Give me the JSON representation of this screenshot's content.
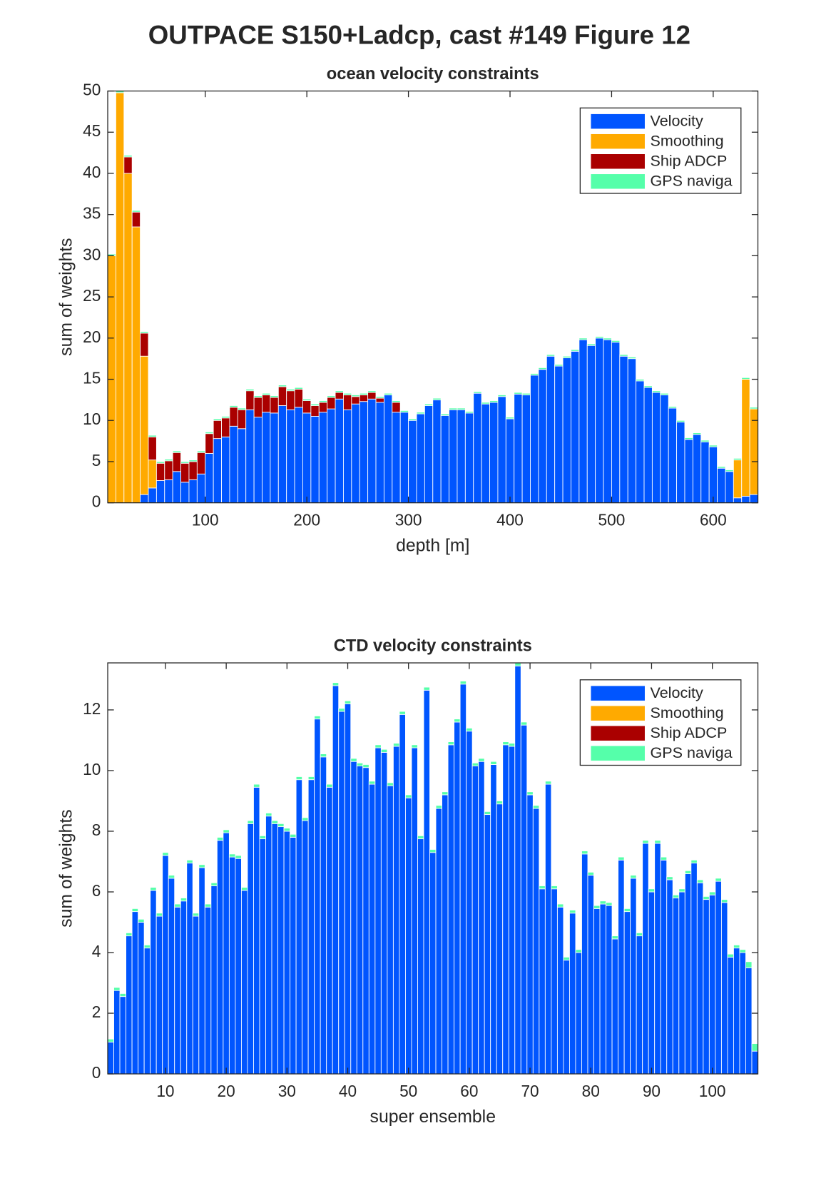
{
  "title": "OUTPACE S150+Ladcp, cast #149  Figure 12",
  "chart_data": [
    {
      "type": "bar",
      "stacked": true,
      "title": "ocean velocity constraints",
      "xlabel": "depth [m]",
      "ylabel": "sum of weights",
      "legend": "upper right",
      "x": [
        8,
        16,
        24,
        32,
        40,
        48,
        56,
        64,
        72,
        80,
        88,
        96,
        104,
        112,
        120,
        128,
        136,
        144,
        152,
        160,
        168,
        176,
        184,
        192,
        200,
        208,
        216,
        224,
        232,
        240,
        248,
        256,
        264,
        272,
        280,
        288,
        296,
        304,
        312,
        320,
        328,
        336,
        344,
        352,
        360,
        368,
        376,
        384,
        392,
        400,
        408,
        416,
        424,
        432,
        440,
        448,
        456,
        464,
        472,
        480,
        488,
        496,
        504,
        512,
        520,
        528,
        536,
        544,
        552,
        560,
        568,
        576,
        584,
        592,
        600,
        608,
        616,
        624,
        632,
        640
      ],
      "xlim": [
        4,
        644
      ],
      "ylim": [
        0,
        50
      ],
      "xticks": [
        100,
        200,
        300,
        400,
        500,
        600
      ],
      "yticks": [
        0,
        5,
        10,
        15,
        20,
        25,
        30,
        35,
        40,
        45,
        50
      ],
      "series": [
        {
          "name": "Velocity",
          "color": "#0055ff",
          "values": [
            0,
            0,
            0,
            0,
            1,
            1.8,
            2.7,
            2.8,
            3.8,
            2.5,
            2.8,
            3.5,
            6,
            7.8,
            8,
            9.3,
            9,
            11.3,
            10.4,
            11,
            10.9,
            11.8,
            11.3,
            11.6,
            10.9,
            10.5,
            11,
            11.4,
            12.6,
            11.3,
            12,
            12.3,
            12.6,
            12.2,
            13.1,
            11,
            11,
            10,
            10.8,
            11.8,
            12.5,
            10.6,
            11.3,
            11.3,
            10.9,
            13.3,
            12,
            12.2,
            12.9,
            10.2,
            13.2,
            13.1,
            15.5,
            16.2,
            17.8,
            16.6,
            17.6,
            18.4,
            19.8,
            19.1,
            20,
            19.8,
            19.5,
            17.8,
            17.5,
            14.8,
            14,
            13.4,
            13.1,
            11.5,
            9.8,
            7.7,
            8.3,
            7.4,
            6.8,
            4.2,
            3.8,
            0.6,
            0.8,
            1
          ]
        },
        {
          "name": "Smoothing",
          "color": "#ffaa00",
          "values": [
            30,
            49.8,
            40,
            33.5,
            16.8,
            3.4,
            0,
            0,
            0,
            0,
            0,
            0,
            0,
            0,
            0,
            0,
            0,
            0,
            0,
            0,
            0,
            0,
            0,
            0,
            0,
            0,
            0,
            0,
            0,
            0,
            0,
            0,
            0,
            0,
            0,
            0,
            0,
            0,
            0,
            0,
            0,
            0,
            0,
            0,
            0,
            0,
            0,
            0,
            0,
            0,
            0,
            0,
            0,
            0,
            0,
            0,
            0,
            0,
            0,
            0,
            0,
            0,
            0,
            0,
            0,
            0,
            0,
            0,
            0,
            0,
            0,
            0,
            0,
            0,
            0,
            0,
            0,
            4.6,
            14.2,
            10.4
          ]
        },
        {
          "name": "Ship ADCP",
          "color": "#aa0000",
          "values": [
            0,
            0,
            2,
            1.8,
            2.8,
            2.8,
            2.1,
            2.3,
            2.3,
            2.3,
            2.2,
            2.6,
            2.4,
            2.2,
            2.3,
            2.3,
            2.3,
            2.3,
            2.4,
            2.1,
            1.9,
            2.3,
            2.3,
            2.2,
            1.5,
            1.3,
            1.2,
            1.4,
            0.8,
            1.8,
            0.9,
            0.8,
            0.8,
            0.5,
            0,
            1.2,
            0,
            0,
            0,
            0,
            0,
            0,
            0,
            0,
            0,
            0,
            0,
            0,
            0,
            0,
            0,
            0,
            0,
            0,
            0,
            0,
            0,
            0,
            0,
            0,
            0,
            0,
            0,
            0,
            0,
            0,
            0,
            0,
            0,
            0,
            0,
            0,
            0,
            0,
            0,
            0,
            0,
            0,
            0,
            0
          ]
        },
        {
          "name": "GPS naviga",
          "color": "#55ffaa",
          "values": [
            0.2,
            0.2,
            0.2,
            0.2,
            0.2,
            0.2,
            0.2,
            0.2,
            0.2,
            0.2,
            0.2,
            0.2,
            0.2,
            0.2,
            0.2,
            0.2,
            0.2,
            0.2,
            0.2,
            0.2,
            0.2,
            0.2,
            0.2,
            0.2,
            0.2,
            0.2,
            0.2,
            0.2,
            0.2,
            0.2,
            0.2,
            0.2,
            0.2,
            0.2,
            0.2,
            0.2,
            0.2,
            0.2,
            0.2,
            0.2,
            0.2,
            0.2,
            0.2,
            0.2,
            0.2,
            0.2,
            0.2,
            0.2,
            0.2,
            0.2,
            0.2,
            0.2,
            0.2,
            0.2,
            0.2,
            0.2,
            0.2,
            0.2,
            0.2,
            0.2,
            0.2,
            0.2,
            0.2,
            0.2,
            0.2,
            0.2,
            0.2,
            0.2,
            0.2,
            0.2,
            0.2,
            0.2,
            0.2,
            0.2,
            0.2,
            0.2,
            0.2,
            0.2,
            0.2,
            0.2
          ]
        }
      ]
    },
    {
      "type": "bar",
      "stacked": true,
      "title": "CTD velocity constraints",
      "xlabel": "super ensemble",
      "ylabel": "sum of weights",
      "legend": "upper right",
      "x": [
        1,
        2,
        3,
        4,
        5,
        6,
        7,
        8,
        9,
        10,
        11,
        12,
        13,
        14,
        15,
        16,
        17,
        18,
        19,
        20,
        21,
        22,
        23,
        24,
        25,
        26,
        27,
        28,
        29,
        30,
        31,
        32,
        33,
        34,
        35,
        36,
        37,
        38,
        39,
        40,
        41,
        42,
        43,
        44,
        45,
        46,
        47,
        48,
        49,
        50,
        51,
        52,
        53,
        54,
        55,
        56,
        57,
        58,
        59,
        60,
        61,
        62,
        63,
        64,
        65,
        66,
        67,
        68,
        69,
        70,
        71,
        72,
        73,
        74,
        75,
        76,
        77,
        78,
        79,
        80,
        81,
        82,
        83,
        84,
        85,
        86,
        87,
        88,
        89,
        90,
        91,
        92,
        93,
        94,
        95,
        96,
        97,
        98,
        99,
        100,
        101,
        102,
        103,
        104,
        105,
        106,
        107
      ],
      "xlim": [
        0.5,
        107.5
      ],
      "ylim": [
        0,
        13.55
      ],
      "xticks": [
        10,
        20,
        30,
        40,
        50,
        60,
        70,
        80,
        90,
        100
      ],
      "yticks": [
        0,
        2,
        4,
        6,
        8,
        10,
        12
      ],
      "series": [
        {
          "name": "Velocity",
          "color": "#0055ff",
          "values": [
            1.05,
            2.75,
            2.55,
            4.55,
            5.35,
            5,
            4.15,
            6.05,
            5.2,
            7.2,
            6.45,
            5.5,
            5.7,
            6.95,
            5.2,
            6.8,
            5.5,
            6.2,
            7.7,
            7.95,
            7.15,
            7.1,
            6.05,
            8.25,
            9.45,
            7.75,
            8.5,
            8.25,
            8.15,
            8,
            7.8,
            9.7,
            8.35,
            9.7,
            11.7,
            10.45,
            9.45,
            12.8,
            11.95,
            12.2,
            10.3,
            10.15,
            10.1,
            9.55,
            10.75,
            10.6,
            9.5,
            10.8,
            11.85,
            9.1,
            10.75,
            7.75,
            12.65,
            7.3,
            8.75,
            9.2,
            10.85,
            11.6,
            12.85,
            11.3,
            10.15,
            10.3,
            8.55,
            10.2,
            8.9,
            10.85,
            10.8,
            13.45,
            11.5,
            9.2,
            8.75,
            6.1,
            9.55,
            6.1,
            5.5,
            3.75,
            5.3,
            4,
            7.25,
            6.55,
            5.45,
            5.6,
            5.55,
            4.45,
            7.05,
            5.35,
            6.45,
            4.55,
            7.6,
            6,
            7.6,
            7.05,
            6.4,
            5.8,
            6,
            6.6,
            6.95,
            6.3,
            5.75,
            5.9,
            6.35,
            5.65,
            3.85,
            4.15,
            4,
            3.5,
            0.75
          ]
        },
        {
          "name": "Smoothing",
          "color": "#ffaa00",
          "values": [
            0,
            0,
            0,
            0,
            0,
            0,
            0,
            0,
            0,
            0,
            0,
            0,
            0,
            0,
            0,
            0,
            0,
            0,
            0,
            0,
            0,
            0,
            0,
            0,
            0,
            0,
            0,
            0,
            0,
            0,
            0,
            0,
            0,
            0,
            0,
            0,
            0,
            0,
            0,
            0,
            0,
            0,
            0,
            0,
            0,
            0,
            0,
            0,
            0,
            0,
            0,
            0,
            0,
            0,
            0,
            0,
            0,
            0,
            0,
            0,
            0,
            0,
            0,
            0,
            0,
            0,
            0,
            0,
            0,
            0,
            0,
            0,
            0,
            0,
            0,
            0,
            0,
            0,
            0,
            0,
            0,
            0,
            0,
            0,
            0,
            0,
            0,
            0,
            0,
            0,
            0,
            0,
            0,
            0,
            0,
            0,
            0,
            0,
            0,
            0,
            0,
            0,
            0,
            0,
            0,
            0,
            0
          ]
        },
        {
          "name": "Ship ADCP",
          "color": "#aa0000",
          "values": [
            0,
            0,
            0,
            0,
            0,
            0,
            0,
            0,
            0,
            0,
            0,
            0,
            0,
            0,
            0,
            0,
            0,
            0,
            0,
            0,
            0,
            0,
            0,
            0,
            0,
            0,
            0,
            0,
            0,
            0,
            0,
            0,
            0,
            0,
            0,
            0,
            0,
            0,
            0,
            0,
            0,
            0,
            0,
            0,
            0,
            0,
            0,
            0,
            0,
            0,
            0,
            0,
            0,
            0,
            0,
            0,
            0,
            0,
            0,
            0,
            0,
            0,
            0,
            0,
            0,
            0,
            0,
            0,
            0,
            0,
            0,
            0,
            0,
            0,
            0,
            0,
            0,
            0,
            0,
            0,
            0,
            0,
            0,
            0,
            0,
            0,
            0,
            0,
            0,
            0,
            0,
            0,
            0,
            0,
            0,
            0,
            0,
            0,
            0,
            0,
            0,
            0,
            0,
            0,
            0,
            0,
            0
          ]
        },
        {
          "name": "GPS naviga",
          "color": "#55ffaa",
          "values": [
            0.1,
            0.1,
            0.1,
            0.1,
            0.1,
            0.1,
            0.1,
            0.1,
            0.1,
            0.1,
            0.1,
            0.1,
            0.1,
            0.1,
            0.1,
            0.1,
            0.1,
            0.1,
            0.1,
            0.1,
            0.1,
            0.1,
            0.1,
            0.1,
            0.1,
            0.1,
            0.1,
            0.1,
            0.1,
            0.1,
            0.1,
            0.1,
            0.1,
            0.1,
            0.1,
            0.1,
            0.1,
            0.1,
            0.1,
            0.1,
            0.1,
            0.1,
            0.1,
            0.1,
            0.1,
            0.1,
            0.1,
            0.1,
            0.1,
            0.1,
            0.1,
            0.1,
            0.1,
            0.1,
            0.1,
            0.1,
            0.1,
            0.1,
            0.1,
            0.1,
            0.1,
            0.1,
            0.1,
            0.1,
            0.1,
            0.1,
            0.1,
            0.1,
            0.1,
            0.1,
            0.1,
            0.1,
            0.1,
            0.1,
            0.1,
            0.1,
            0.1,
            0.1,
            0.1,
            0.1,
            0.1,
            0.1,
            0.1,
            0.1,
            0.1,
            0.1,
            0.1,
            0.1,
            0.1,
            0.1,
            0.1,
            0.1,
            0.1,
            0.1,
            0.1,
            0.1,
            0.1,
            0.1,
            0.1,
            0.1,
            0.1,
            0.1,
            0.1,
            0.1,
            0.1,
            0.2,
            0.25
          ]
        }
      ]
    }
  ]
}
